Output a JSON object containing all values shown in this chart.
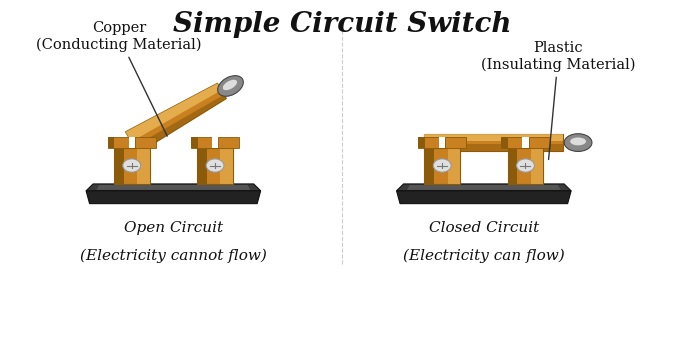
{
  "title": "Simple Circuit Switch",
  "title_fontsize": 20,
  "title_font": "DejaVu Serif",
  "bg_color": "#ffffff",
  "left_label1": "Copper",
  "left_label2": "(Conducting Material)",
  "right_label1": "Plastic",
  "right_label2": "(Insulating Material)",
  "bottom_left1": "Open Circuit",
  "bottom_left2": "(Electricity cannot flow)",
  "bottom_right1": "Closed Circuit",
  "bottom_right2": "(Electricity can flow)",
  "copper_mid": "#C88020",
  "copper_dark": "#8B5A0A",
  "copper_light": "#E8A830",
  "copper_bright": "#F0C060",
  "base_top": "#3a3a3a",
  "base_mid": "#222222",
  "base_dark": "#111111",
  "base_light": "#555555",
  "handle_dark": "#444444",
  "handle_mid": "#888888",
  "handle_light": "#bbbbbb",
  "handle_bright": "#dddddd",
  "annotation_fontsize": 10.5
}
